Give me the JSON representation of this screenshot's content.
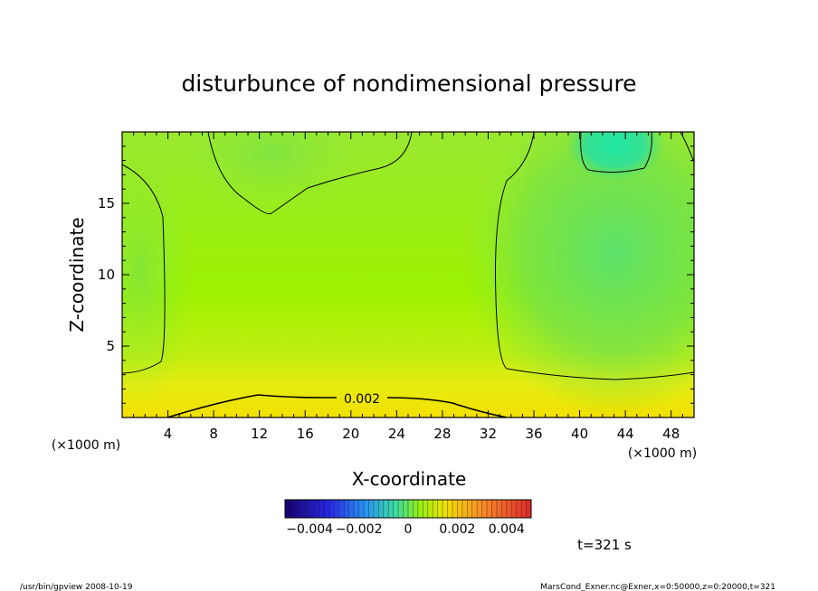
{
  "chart_data": {
    "type": "heatmap",
    "title": "disturbunce of nondimensional pressure",
    "xlabel": "X-coordinate",
    "ylabel": "Z-coordinate",
    "x_unit_left": "(×1000 m)",
    "x_unit_right": "(×1000 m)",
    "x_range": [
      0,
      50
    ],
    "y_range": [
      0,
      20
    ],
    "x_ticks": [
      4,
      8,
      12,
      16,
      20,
      24,
      28,
      32,
      36,
      40,
      44,
      48
    ],
    "x_tick_labels": [
      "4",
      "8",
      "12",
      "16",
      "20",
      "24",
      "28",
      "32",
      "36",
      "40",
      "44",
      "48"
    ],
    "y_ticks": [
      5,
      10,
      15
    ],
    "y_tick_labels": [
      "5",
      "10",
      "15"
    ],
    "contour_label": "0.002",
    "colorbar": {
      "range": [
        -0.005,
        0.005
      ],
      "tick_labels": [
        "−0.004",
        "−0.002",
        "0",
        "0.002",
        "0.004"
      ],
      "tick_values": [
        -0.004,
        -0.002,
        0,
        0.002,
        0.004
      ]
    },
    "grid": false
  },
  "time_label": "t=321 s",
  "footer_left": "/usr/bin/gpview   2008-10-19",
  "footer_right": "MarsCond_Exner.nc@Exner,x=0:50000,z=0:20000,t=321"
}
